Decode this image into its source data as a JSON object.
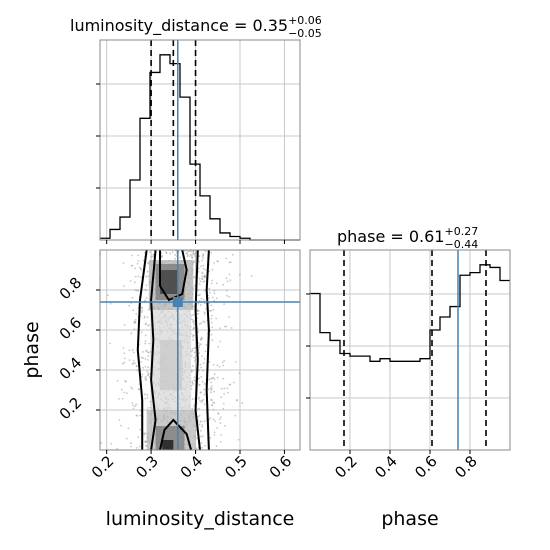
{
  "chart_data": [
    {
      "type": "histogram",
      "panel": "top-left",
      "title": {
        "base": "luminosity_distance = 0.35",
        "sup": "+0.06",
        "sub": "−0.05"
      },
      "parameter": "luminosity_distance",
      "bin_edges": [
        0.185,
        0.2075,
        0.23,
        0.2525,
        0.275,
        0.2975,
        0.32,
        0.3425,
        0.365,
        0.3875,
        0.41,
        0.4325,
        0.455,
        0.4775,
        0.5,
        0.5225,
        0.545,
        0.5675,
        0.59,
        0.6125,
        0.635
      ],
      "counts": [
        1,
        6,
        13,
        34,
        69,
        95,
        105,
        100,
        81,
        43,
        25,
        12,
        4,
        2,
        1,
        0,
        0,
        0,
        0,
        0
      ],
      "quantile_lines": [
        0.3,
        0.35,
        0.4
      ],
      "truth": 0.36,
      "xlim": [
        0.185,
        0.635
      ],
      "grid": true
    },
    {
      "type": "histogram",
      "panel": "bottom-right",
      "title": {
        "base": "phase = 0.61",
        "sup": "+0.27",
        "sub": "−0.44"
      },
      "parameter": "phase",
      "bin_edges": [
        0.0,
        0.05,
        0.1,
        0.15,
        0.2,
        0.25,
        0.3,
        0.35,
        0.4,
        0.45,
        0.5,
        0.55,
        0.6,
        0.65,
        0.7,
        0.75,
        0.8,
        0.85,
        0.9,
        0.95,
        1.0
      ],
      "counts": [
        60,
        45,
        42,
        37,
        36,
        36,
        34,
        35,
        34,
        34,
        34,
        35,
        46,
        51,
        55,
        67,
        68,
        71,
        70,
        65
      ],
      "quantile_lines": [
        0.17,
        0.61,
        0.88
      ],
      "truth": 0.74,
      "xlim": [
        0.0,
        1.0
      ],
      "grid": true
    },
    {
      "type": "heatmap",
      "panel": "bottom-left",
      "xlabel": "luminosity_distance",
      "ylabel": "phase",
      "xlim": [
        0.185,
        0.635
      ],
      "ylim": [
        0.0,
        1.0
      ],
      "xticks": [
        0.2,
        0.3,
        0.4,
        0.5,
        0.6
      ],
      "yticks": [
        0.2,
        0.4,
        0.6,
        0.8
      ],
      "truth": [
        0.36,
        0.74
      ],
      "description_contours": 4,
      "grid": true
    }
  ],
  "x_tick_labels_ld": [
    "0.2",
    "0.3",
    "0.4",
    "0.5",
    "0.6"
  ],
  "x_tick_labels_phase": [
    "0.2",
    "0.4",
    "0.6",
    "0.8"
  ],
  "y_tick_labels_phase": [
    "0.2",
    "0.4",
    "0.6",
    "0.8"
  ],
  "colors": {
    "truth": "#4682b4",
    "hist": "#000000",
    "grid": "#c8c8c8",
    "scatter": "#9a9a9a"
  }
}
